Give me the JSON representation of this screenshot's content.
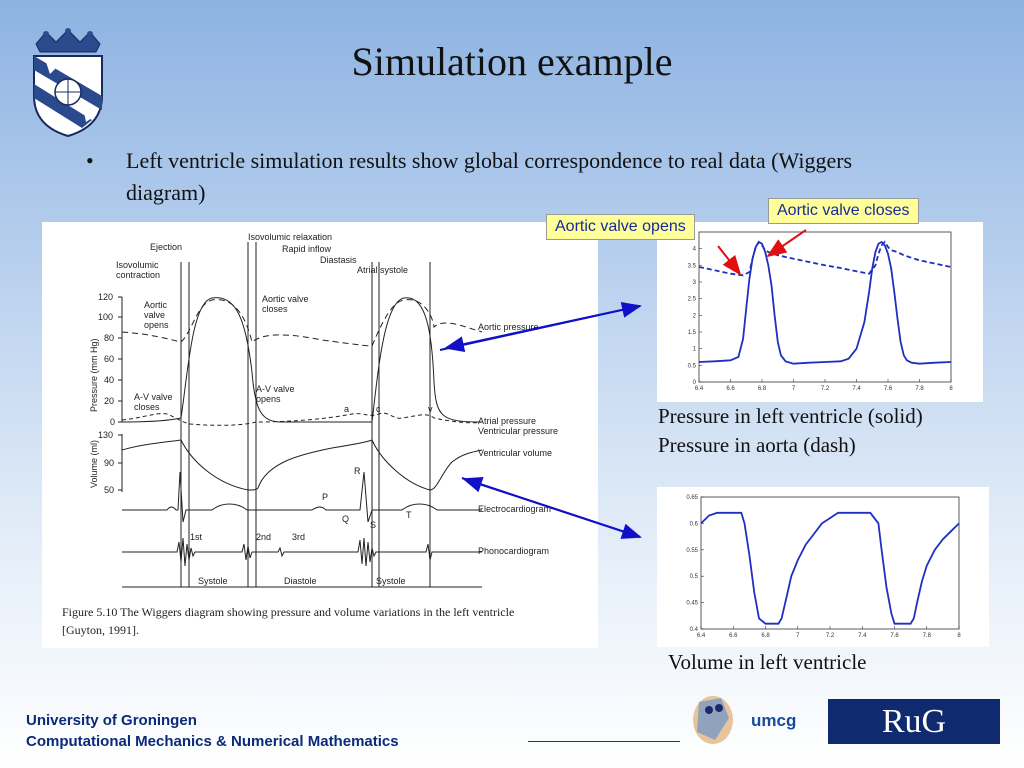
{
  "slide": {
    "title": "Simulation example",
    "bullet_symbol": "•",
    "bullet_text": "Left ventricle simulation results show global correspondence to real data (Wiggers diagram)"
  },
  "callouts": {
    "opens": "Aortic valve opens",
    "closes": "Aortic valve closes"
  },
  "captions": {
    "plot1_line1": "Pressure in left ventricle (solid)",
    "plot1_line2": "Pressure in aorta (dash)",
    "plot2": "Volume in left ventricle"
  },
  "wiggers": {
    "labels": {
      "ejection": "Ejection",
      "isovolumic_relaxation": "Isovolumic relaxation",
      "rapid_inflow": "Rapid inflow",
      "diastasis": "Diastasis",
      "atrial_systole": "Atrial systole",
      "isovolumic_contraction_1": "Isovolumic",
      "isovolumic_contraction_2": "contraction",
      "aortic_opens_1": "Aortic",
      "aortic_opens_2": "valve",
      "aortic_opens_3": "opens",
      "aortic_closes_1": "Aortic valve",
      "aortic_closes_2": "closes",
      "aortic_pressure": "Aortic pressure",
      "av_closes_1": "A-V valve",
      "av_closes_2": "closes",
      "av_opens_1": "A-V valve",
      "av_opens_2": "opens",
      "atrial_pressure": "Atrial pressure",
      "ventricular_pressure": "Ventricular pressure",
      "ventricular_volume": "Ventricular volume",
      "electrocardiogram": "Electrocardiogram",
      "phonocardiogram": "Phonocardiogram",
      "pressure_axis": "Pressure (mm Hg)",
      "volume_axis": "Volume (ml)",
      "systole1": "Systole",
      "diastole": "Diastole",
      "systole2": "Systole",
      "first": "1st",
      "second": "2nd",
      "third": "3rd",
      "wave_a": "a",
      "wave_c": "c",
      "wave_v": "v",
      "ecg_p": "P",
      "ecg_q": "Q",
      "ecg_r": "R",
      "ecg_s": "S",
      "ecg_t": "T",
      "p_ticks": [
        "120",
        "100",
        "80",
        "60",
        "40",
        "20",
        "0"
      ],
      "v_ticks": [
        "130",
        "90",
        "50"
      ],
      "figure_caption_1": "Figure 5.10    The Wiggers diagram showing pressure and volume variations in the left ventricle",
      "figure_caption_2": "[Guyton, 1991]."
    }
  },
  "footer": {
    "line1": "University of Groningen",
    "line2": "Computational Mechanics & Numerical Mathematics",
    "umcg": "umcg",
    "rug": "RuG"
  },
  "colors": {
    "title": "#111111",
    "footer": "#0a2a7a",
    "plot_line": "#1f2fbf",
    "arrow_blue": "#1010c8",
    "arrow_red": "#e01010",
    "callout_bg": "#ffff99",
    "rug_bg": "#0f2a6e"
  },
  "chart_data": [
    {
      "type": "line",
      "x_ticks": [
        "6.4",
        "6.6",
        "6.8",
        "7",
        "7.2",
        "7.4",
        "7.6",
        "7.8",
        "8"
      ],
      "y_ticks": [
        "0",
        "0.5",
        "1",
        "1.5",
        "2",
        "2.5",
        "3",
        "3.5",
        "4"
      ],
      "xlim": [
        6.4,
        8.0
      ],
      "ylim": [
        0,
        4.5
      ],
      "series": [
        {
          "style": "solid",
          "x": [
            6.4,
            6.5,
            6.6,
            6.65,
            6.68,
            6.7,
            6.72,
            6.74,
            6.76,
            6.78,
            6.8,
            6.82,
            6.84,
            6.86,
            6.88,
            6.9,
            6.92,
            6.95,
            7.0,
            7.1,
            7.2,
            7.3,
            7.35,
            7.4,
            7.45,
            7.48,
            7.5,
            7.52,
            7.54,
            7.56,
            7.58,
            7.6,
            7.62,
            7.64,
            7.66,
            7.68,
            7.7,
            7.72,
            7.75,
            7.8,
            7.9,
            8.0
          ],
          "y": [
            0.6,
            0.62,
            0.65,
            0.75,
            1.3,
            2.2,
            3.1,
            3.7,
            4.05,
            4.2,
            4.15,
            3.9,
            3.5,
            2.9,
            2.0,
            1.2,
            0.8,
            0.62,
            0.55,
            0.58,
            0.6,
            0.62,
            0.7,
            1.0,
            1.8,
            2.7,
            3.4,
            3.9,
            4.15,
            4.2,
            4.1,
            3.85,
            3.4,
            2.7,
            1.9,
            1.2,
            0.8,
            0.65,
            0.58,
            0.55,
            0.58,
            0.6
          ]
        },
        {
          "style": "dash",
          "x": [
            6.4,
            6.5,
            6.6,
            6.68,
            6.72,
            6.74,
            6.76,
            6.78,
            6.8,
            6.82,
            6.84,
            6.9,
            7.0,
            7.1,
            7.2,
            7.3,
            7.4,
            7.48,
            7.52,
            7.54,
            7.56,
            7.58,
            7.6,
            7.62,
            7.66,
            7.7,
            7.8,
            7.9,
            8.0
          ],
          "y": [
            3.45,
            3.35,
            3.25,
            3.2,
            3.3,
            3.7,
            4.05,
            4.2,
            4.1,
            3.95,
            3.9,
            3.8,
            3.7,
            3.6,
            3.5,
            3.42,
            3.32,
            3.25,
            3.5,
            3.85,
            4.1,
            4.2,
            4.05,
            3.95,
            3.9,
            3.8,
            3.65,
            3.55,
            3.45
          ]
        }
      ]
    },
    {
      "type": "line",
      "x_ticks": [
        "6.4",
        "6.6",
        "6.8",
        "7",
        "7.2",
        "7.4",
        "7.6",
        "7.8",
        "8"
      ],
      "y_ticks": [
        "0.4",
        "0.45",
        "0.5",
        "0.55",
        "0.6",
        "0.65"
      ],
      "xlim": [
        6.4,
        8.0
      ],
      "ylim": [
        0.4,
        0.65
      ],
      "series": [
        {
          "style": "solid",
          "x": [
            6.4,
            6.45,
            6.5,
            6.6,
            6.65,
            6.67,
            6.7,
            6.73,
            6.76,
            6.8,
            6.85,
            6.88,
            6.9,
            6.93,
            6.96,
            7.0,
            7.05,
            7.1,
            7.15,
            7.2,
            7.25,
            7.3,
            7.35,
            7.45,
            7.5,
            7.52,
            7.55,
            7.58,
            7.6,
            7.65,
            7.7,
            7.72,
            7.74,
            7.77,
            7.8,
            7.85,
            7.9,
            7.95,
            8.0
          ],
          "y": [
            0.6,
            0.615,
            0.62,
            0.62,
            0.62,
            0.6,
            0.54,
            0.47,
            0.42,
            0.41,
            0.41,
            0.41,
            0.42,
            0.46,
            0.5,
            0.53,
            0.56,
            0.58,
            0.6,
            0.61,
            0.62,
            0.62,
            0.62,
            0.62,
            0.6,
            0.55,
            0.48,
            0.43,
            0.41,
            0.41,
            0.41,
            0.42,
            0.45,
            0.49,
            0.52,
            0.55,
            0.57,
            0.585,
            0.6
          ]
        }
      ]
    }
  ]
}
